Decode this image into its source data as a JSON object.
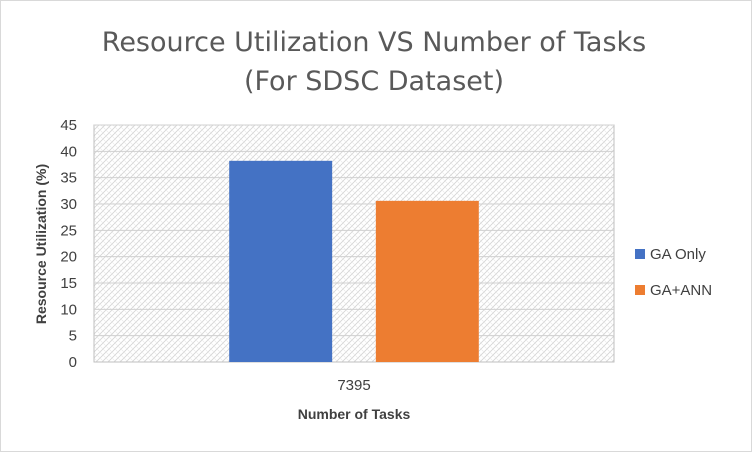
{
  "chart_data": {
    "type": "bar",
    "title": [
      "Resource Utilization VS Number of Tasks",
      "(For SDSC Dataset)"
    ],
    "xlabel": "Number of Tasks",
    "ylabel": "Resource Utilization (%)",
    "categories": [
      "7395"
    ],
    "series": [
      {
        "name": "GA Only",
        "values": [
          38.2
        ],
        "color": "#4472C4"
      },
      {
        "name": "GA+ANN",
        "values": [
          30.6
        ],
        "color": "#ED7D31"
      }
    ],
    "ylim": [
      0,
      45
    ],
    "yticks": [
      0,
      5,
      10,
      15,
      20,
      25,
      30,
      35,
      40,
      45
    ],
    "grid": true,
    "plot_background": "hatched",
    "legend_position": "right"
  }
}
